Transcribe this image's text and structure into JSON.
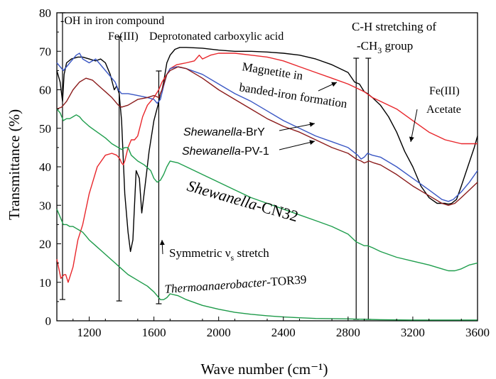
{
  "chart_data": {
    "type": "line",
    "xlabel": "Wave number (cm⁻¹)",
    "ylabel": "Transmittance (%)",
    "xlim": [
      1000,
      3600
    ],
    "ylim": [
      0,
      80
    ],
    "xticks": [
      1200,
      1600,
      2000,
      2400,
      2800,
      3200,
      3600
    ],
    "yticks": [
      0,
      10,
      20,
      30,
      40,
      50,
      60,
      70,
      80
    ],
    "grid": false,
    "colors": {
      "black": "#000000",
      "red": "#e8262b",
      "blue": "#3a57c4",
      "darkred": "#8b1b1b",
      "green": "#1f9e4d",
      "green2": "#1d9a49"
    },
    "series": [
      {
        "name": "Fe(III) Acetate",
        "color_key": "black",
        "x": [
          1000,
          1020,
          1035,
          1045,
          1060,
          1090,
          1130,
          1160,
          1200,
          1240,
          1270,
          1300,
          1330,
          1355,
          1370,
          1385,
          1400,
          1420,
          1440,
          1455,
          1470,
          1490,
          1510,
          1525,
          1545,
          1570,
          1600,
          1625,
          1640,
          1650,
          1660,
          1680,
          1700,
          1730,
          1760,
          1800,
          1900,
          2000,
          2100,
          2200,
          2300,
          2400,
          2500,
          2600,
          2700,
          2800,
          2840,
          2870,
          2900,
          2920,
          2950,
          3000,
          3050,
          3100,
          3150,
          3200,
          3250,
          3300,
          3350,
          3400,
          3420,
          3440,
          3470,
          3500,
          3540,
          3580,
          3600
        ],
        "y": [
          65,
          62,
          57,
          64,
          67,
          68,
          68.5,
          68.5,
          68,
          67.5,
          68,
          67,
          64,
          60,
          61,
          59,
          52,
          33,
          23,
          18,
          21,
          39,
          37,
          28,
          35,
          44,
          52,
          56,
          59,
          60,
          62,
          67,
          69,
          70.5,
          71,
          71,
          70.8,
          70.3,
          70,
          70,
          69.8,
          69.5,
          69,
          68,
          66.5,
          64.5,
          62,
          61.5,
          59.5,
          59,
          58,
          56,
          53,
          49,
          44,
          40,
          35,
          32,
          30.5,
          30.5,
          30.3,
          30.5,
          31.5,
          35,
          40,
          45,
          48
        ]
      },
      {
        "name": "Magnetite in banded-iron formation",
        "color_key": "red",
        "x": [
          1000,
          1025,
          1045,
          1055,
          1070,
          1100,
          1130,
          1160,
          1200,
          1250,
          1300,
          1340,
          1370,
          1390,
          1400,
          1410,
          1420,
          1440,
          1460,
          1480,
          1500,
          1530,
          1560,
          1600,
          1630,
          1650,
          1680,
          1700,
          1740,
          1800,
          1850,
          1880,
          1900,
          1950,
          2000,
          2100,
          2200,
          2300,
          2400,
          2500,
          2600,
          2700,
          2800,
          2850,
          2900,
          2950,
          3000,
          3100,
          3200,
          3300,
          3400,
          3500,
          3600
        ],
        "y": [
          16,
          11,
          12,
          12,
          10,
          14,
          21,
          25,
          33,
          40,
          43,
          43.5,
          43,
          42,
          41,
          40.5,
          41.5,
          45,
          47,
          47,
          48,
          53,
          56,
          58,
          60,
          62,
          64,
          65.5,
          66.5,
          67,
          67.5,
          69,
          68,
          69,
          69.5,
          69.5,
          69,
          68.5,
          67.5,
          66,
          64.5,
          63,
          61.5,
          60.5,
          59.5,
          58,
          57,
          55,
          52,
          49,
          47,
          46,
          46
        ]
      },
      {
        "name": "Shewanella-BrY",
        "color_key": "blue",
        "x": [
          1000,
          1020,
          1040,
          1060,
          1080,
          1100,
          1120,
          1140,
          1160,
          1200,
          1240,
          1280,
          1320,
          1360,
          1380,
          1400,
          1440,
          1500,
          1560,
          1600,
          1620,
          1640,
          1660,
          1680,
          1700,
          1740,
          1800,
          1900,
          2000,
          2100,
          2200,
          2300,
          2400,
          2500,
          2600,
          2700,
          2800,
          2860,
          2880,
          2900,
          2920,
          2950,
          3000,
          3100,
          3200,
          3300,
          3380,
          3420,
          3450,
          3500,
          3550,
          3600
        ],
        "y": [
          67,
          66,
          65,
          66,
          67,
          68,
          69,
          69.5,
          68,
          67,
          68,
          66,
          64,
          62,
          60,
          59,
          59,
          58.5,
          58,
          57.5,
          56.5,
          57.5,
          61,
          64,
          65.5,
          66,
          65.5,
          64,
          61.5,
          59,
          57,
          54.5,
          52,
          50,
          48,
          46.5,
          45,
          43,
          42,
          42.5,
          43.5,
          43,
          42.5,
          40,
          37,
          34,
          31.5,
          31,
          31.5,
          33.5,
          36,
          39
        ]
      },
      {
        "name": "Shewanella-PV-1",
        "color_key": "darkred",
        "x": [
          1000,
          1030,
          1060,
          1100,
          1140,
          1180,
          1220,
          1260,
          1300,
          1340,
          1380,
          1400,
          1440,
          1500,
          1560,
          1600,
          1630,
          1650,
          1680,
          1700,
          1750,
          1800,
          1900,
          2000,
          2100,
          2200,
          2300,
          2400,
          2500,
          2600,
          2700,
          2800,
          2850,
          2880,
          2900,
          2930,
          2960,
          3000,
          3100,
          3200,
          3300,
          3380,
          3420,
          3460,
          3500,
          3550,
          3600
        ],
        "y": [
          55,
          55.5,
          57,
          60,
          62,
          63,
          62.5,
          61,
          59.5,
          58,
          56,
          55.5,
          56,
          57.5,
          58,
          58.5,
          58,
          60,
          64,
          65,
          66,
          65.5,
          63,
          60,
          57.5,
          55,
          52.5,
          50.5,
          49,
          47,
          45,
          43.5,
          42,
          41.5,
          41,
          41.5,
          41,
          40.5,
          38,
          35,
          32.5,
          30.5,
          30,
          30.5,
          32,
          34,
          36
        ]
      },
      {
        "name": "Shewanella-CN32",
        "color_key": "green",
        "x": [
          1000,
          1020,
          1040,
          1060,
          1080,
          1100,
          1120,
          1140,
          1160,
          1200,
          1250,
          1300,
          1340,
          1380,
          1400,
          1420,
          1440,
          1460,
          1500,
          1540,
          1580,
          1600,
          1620,
          1640,
          1660,
          1680,
          1700,
          1750,
          1800,
          1900,
          2000,
          2100,
          2200,
          2300,
          2400,
          2500,
          2600,
          2700,
          2800,
          2850,
          2900,
          2920,
          2950,
          3000,
          3100,
          3200,
          3300,
          3380,
          3420,
          3460,
          3500,
          3550,
          3600
        ],
        "y": [
          55,
          54,
          52,
          52.5,
          52.5,
          53,
          53.5,
          53,
          52,
          50.5,
          49,
          47.5,
          46,
          45,
          44.5,
          45,
          45,
          43,
          41.5,
          40.5,
          39,
          37,
          36,
          36.5,
          38,
          40,
          41.5,
          41,
          40,
          38,
          36,
          34,
          32,
          30.5,
          29,
          27.5,
          26,
          24.5,
          22.5,
          20.5,
          19.5,
          19.5,
          19,
          18,
          16.5,
          15.5,
          14.5,
          13.5,
          13,
          13,
          13.5,
          14.5,
          15
        ]
      },
      {
        "name": "Thermoanaerobacter-TOR39",
        "color_key": "green2",
        "x": [
          1000,
          1020,
          1040,
          1060,
          1080,
          1100,
          1120,
          1140,
          1160,
          1180,
          1200,
          1240,
          1280,
          1320,
          1360,
          1400,
          1440,
          1480,
          1520,
          1560,
          1600,
          1620,
          1640,
          1660,
          1680,
          1700,
          1750,
          1800,
          1900,
          2000,
          2100,
          2200,
          2300,
          2400,
          2500,
          2600,
          2800,
          3000,
          3200,
          3400,
          3600
        ],
        "y": [
          29,
          27,
          25,
          25,
          24.5,
          24.5,
          24,
          23.5,
          23,
          22,
          21,
          19.5,
          18,
          16.5,
          15,
          13.5,
          12,
          11,
          10,
          9,
          7.5,
          6.5,
          5.5,
          5.5,
          6,
          7,
          6.5,
          5.5,
          4,
          3,
          2.2,
          1.7,
          1.3,
          1,
          0.8,
          0.6,
          0.5,
          0.3,
          0.2,
          0.2,
          0.2
        ]
      }
    ],
    "reference_lines": [
      {
        "x": 1035,
        "label": "-OH in iron compound"
      },
      {
        "x": 1385,
        "label": "Fe(III)"
      },
      {
        "x": 1630,
        "label": "Deprotonated carboxylic acid"
      },
      {
        "x": 2850,
        "label": "C-H stretching of -CH3 group"
      },
      {
        "x": 2925,
        "label": ""
      }
    ],
    "annotations": {
      "oh": "-OH in iron compound",
      "fe3": "Fe(III)",
      "deprot": "Deprotonated carboxylic acid",
      "ch_line1": "C-H stretching of",
      "ch_line2_pre": "-CH",
      "ch_line2_sub": "3",
      "ch_line2_post": " group",
      "magnetite1": "Magnetite in",
      "magnetite2": "banded-iron formation",
      "feac1": "Fe(III)",
      "feac2": "Acetate",
      "bry_italic": "Shewanella",
      "bry_rest": "-BrY",
      "pv_italic": "Shewanella",
      "pv_rest": "-PV-1",
      "cn32_italic": "Shewanella",
      "cn32_rest": "-CN32",
      "sym_pre": "Symmetric ν",
      "sym_sub": "s",
      "sym_post": " stretch",
      "tor_italic": "Thermoanaerobacter",
      "tor_rest": "-TOR39"
    }
  }
}
